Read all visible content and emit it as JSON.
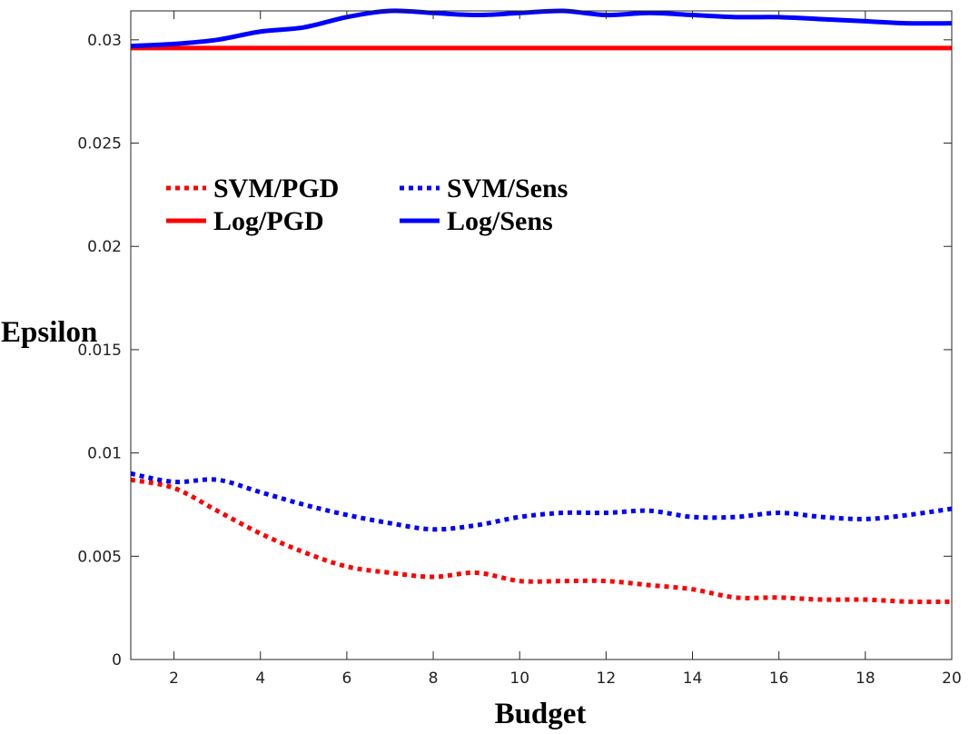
{
  "chart_data": {
    "type": "line",
    "title": "",
    "xlabel": "Budget",
    "ylabel": "Epsilon",
    "xlim": [
      1,
      20
    ],
    "ylim": [
      0,
      0.0314
    ],
    "xticks": [
      2,
      4,
      6,
      8,
      10,
      12,
      14,
      16,
      18,
      20
    ],
    "xtick_labels": [
      "2",
      "4",
      "6",
      "8",
      "10",
      "12",
      "14",
      "16",
      "18",
      "20"
    ],
    "yticks": [
      0,
      0.005,
      0.01,
      0.015,
      0.02,
      0.025,
      0.03
    ],
    "ytick_labels": [
      "0",
      "0.005",
      "0.01",
      "0.015",
      "0.02",
      "0.025",
      "0.03"
    ],
    "grid": false,
    "legend_position": "upper-left",
    "series": [
      {
        "name": "SVM/PGD",
        "color": "#ff0000",
        "style": "dotted",
        "x": [
          1,
          2,
          3,
          4,
          5,
          6,
          7,
          8,
          9,
          10,
          11,
          12,
          13,
          14,
          15,
          16,
          17,
          18,
          19,
          20
        ],
        "y": [
          0.0087,
          0.0083,
          0.0072,
          0.0061,
          0.0052,
          0.0045,
          0.0042,
          0.004,
          0.0042,
          0.0038,
          0.0038,
          0.0038,
          0.0036,
          0.0034,
          0.003,
          0.003,
          0.0029,
          0.0029,
          0.0028,
          0.0028
        ]
      },
      {
        "name": "SVM/Sens",
        "color": "#0000ff",
        "style": "dotted",
        "x": [
          1,
          2,
          3,
          4,
          5,
          6,
          7,
          8,
          9,
          10,
          11,
          12,
          13,
          14,
          15,
          16,
          17,
          18,
          19,
          20
        ],
        "y": [
          0.009,
          0.0086,
          0.0087,
          0.0081,
          0.0075,
          0.007,
          0.0066,
          0.0063,
          0.0065,
          0.0069,
          0.0071,
          0.0071,
          0.0072,
          0.0069,
          0.0069,
          0.0071,
          0.0069,
          0.0068,
          0.007,
          0.0073
        ]
      },
      {
        "name": "Log/PGD",
        "color": "#ff0000",
        "style": "solid",
        "x": [
          1,
          2,
          3,
          4,
          5,
          6,
          7,
          8,
          9,
          10,
          11,
          12,
          13,
          14,
          15,
          16,
          17,
          18,
          19,
          20
        ],
        "y": [
          0.0296,
          0.0296,
          0.0296,
          0.0296,
          0.0296,
          0.0296,
          0.0296,
          0.0296,
          0.0296,
          0.0296,
          0.0296,
          0.0296,
          0.0296,
          0.0296,
          0.0296,
          0.0296,
          0.0296,
          0.0296,
          0.0296,
          0.0296
        ]
      },
      {
        "name": "Log/Sens",
        "color": "#0000ff",
        "style": "solid",
        "x": [
          1,
          2,
          3,
          4,
          5,
          6,
          7,
          8,
          9,
          10,
          11,
          12,
          13,
          14,
          15,
          16,
          17,
          18,
          19,
          20
        ],
        "y": [
          0.0297,
          0.0298,
          0.03,
          0.0304,
          0.0306,
          0.0311,
          0.0314,
          0.0313,
          0.0312,
          0.0313,
          0.0314,
          0.0312,
          0.0313,
          0.0312,
          0.0311,
          0.0311,
          0.031,
          0.0309,
          0.0308,
          0.0308
        ]
      }
    ],
    "legend_order": [
      "SVM/PGD",
      "SVM/Sens",
      "Log/PGD",
      "Log/Sens"
    ]
  }
}
